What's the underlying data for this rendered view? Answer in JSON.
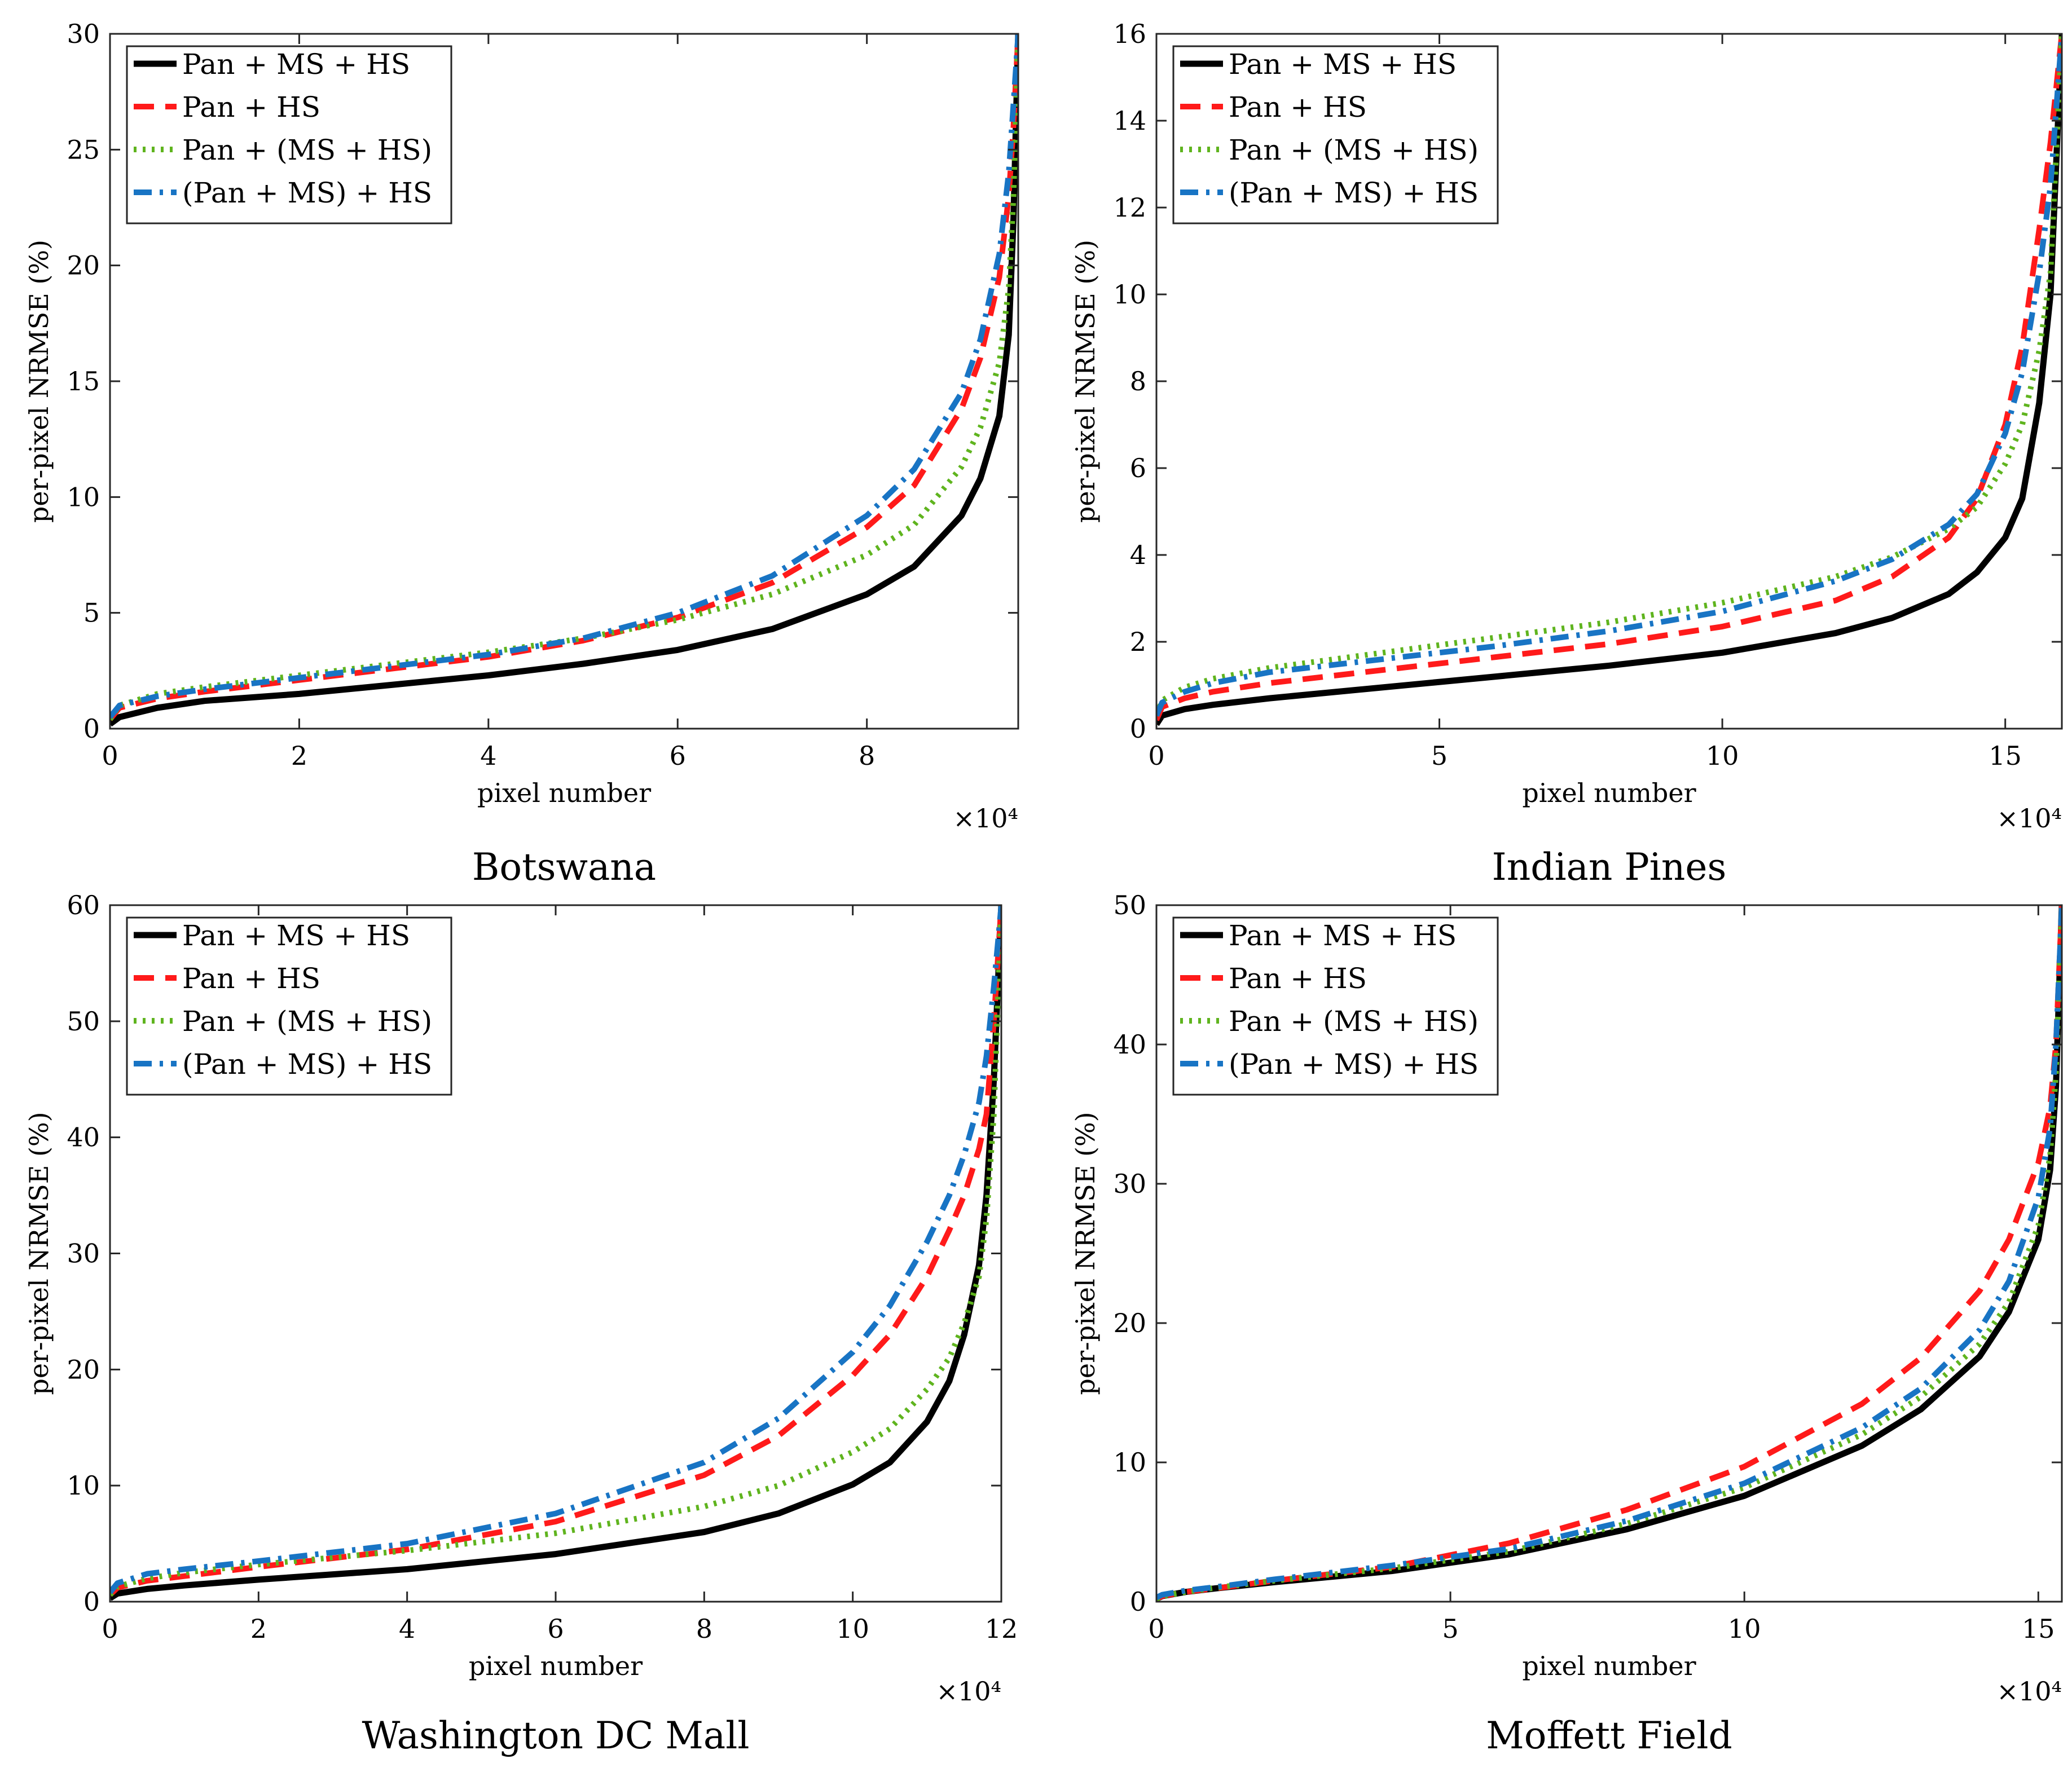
{
  "figure": {
    "panels": [
      "Botswana",
      "Indian Pines",
      "Washington DC Mall",
      "Moffett Field"
    ]
  },
  "legend": {
    "entries": [
      "Pan + MS + HS",
      "Pan + HS",
      "Pan + (MS + HS)",
      "(Pan + MS) + HS"
    ],
    "colors": [
      "#000000",
      "#ff1a1a",
      "#5fb41e",
      "#1874c4"
    ],
    "dash_styles": [
      "solid",
      "dashed",
      "dotted",
      "dash-dot"
    ],
    "placement": "top-left"
  },
  "chart_data": [
    {
      "type": "line",
      "title": "Botswana",
      "xlabel": "pixel number",
      "ylabel": "per-pixel NRMSE (%)",
      "x_exponent_label": "×10⁴",
      "xlim": [
        0,
        9.6
      ],
      "ylim": [
        0,
        30
      ],
      "xticks": [
        0,
        2,
        4,
        6,
        8
      ],
      "yticks": [
        0,
        5,
        10,
        15,
        20,
        25,
        30
      ],
      "x_scale_note": "x values in units of 10^4 pixels",
      "grid": false,
      "series": [
        {
          "name": "Pan + MS + HS",
          "x": [
            0,
            0.1,
            0.5,
            1,
            2,
            3,
            4,
            5,
            6,
            7,
            8,
            8.5,
            9,
            9.2,
            9.4,
            9.5,
            9.55,
            9.6
          ],
          "y": [
            0.2,
            0.5,
            0.9,
            1.2,
            1.5,
            1.9,
            2.3,
            2.8,
            3.4,
            4.3,
            5.8,
            7,
            9.2,
            10.8,
            13.5,
            17,
            22,
            30
          ]
        },
        {
          "name": "Pan + HS",
          "x": [
            0,
            0.1,
            0.5,
            1,
            2,
            3,
            4,
            5,
            6,
            7,
            8,
            8.5,
            9,
            9.2,
            9.4,
            9.5,
            9.55,
            9.6
          ],
          "y": [
            0.4,
            0.9,
            1.3,
            1.6,
            2.1,
            2.6,
            3.1,
            3.8,
            4.8,
            6.3,
            8.7,
            10.5,
            13.8,
            16,
            19.5,
            23,
            26,
            30
          ]
        },
        {
          "name": "Pan + (MS + HS)",
          "x": [
            0,
            0.1,
            0.5,
            1,
            2,
            3,
            4,
            5,
            6,
            7,
            8,
            8.5,
            9,
            9.2,
            9.4,
            9.5,
            9.55,
            9.6
          ],
          "y": [
            0.4,
            1,
            1.5,
            1.8,
            2.3,
            2.8,
            3.3,
            3.9,
            4.7,
            5.8,
            7.5,
            8.8,
            11.3,
            13,
            15.8,
            19,
            23,
            30
          ]
        },
        {
          "name": "(Pan + MS) + HS",
          "x": [
            0,
            0.1,
            0.5,
            1,
            2,
            3,
            4,
            5,
            6,
            7,
            8,
            8.5,
            9,
            9.2,
            9.4,
            9.5,
            9.55,
            9.6
          ],
          "y": [
            0.5,
            1,
            1.4,
            1.7,
            2.2,
            2.7,
            3.2,
            3.9,
            5,
            6.6,
            9.2,
            11.2,
            14.5,
            16.8,
            20.5,
            24,
            27,
            30
          ]
        }
      ]
    },
    {
      "type": "line",
      "title": "Indian Pines",
      "xlabel": "pixel number",
      "ylabel": "per-pixel NRMSE (%)",
      "x_exponent_label": "×10⁴",
      "xlim": [
        0,
        16
      ],
      "ylim": [
        0,
        16
      ],
      "xticks": [
        0,
        5,
        10,
        15
      ],
      "yticks": [
        0,
        2,
        4,
        6,
        8,
        10,
        12,
        14,
        16
      ],
      "x_scale_note": "x values in units of 10^4 pixels",
      "grid": false,
      "series": [
        {
          "name": "Pan + MS + HS",
          "x": [
            0,
            0.1,
            0.5,
            1,
            2,
            4,
            6,
            8,
            10,
            12,
            13,
            14,
            14.5,
            15,
            15.3,
            15.6,
            15.8,
            16
          ],
          "y": [
            0.1,
            0.3,
            0.45,
            0.55,
            0.7,
            0.95,
            1.2,
            1.45,
            1.75,
            2.2,
            2.55,
            3.1,
            3.6,
            4.4,
            5.3,
            7.5,
            10,
            16
          ]
        },
        {
          "name": "Pan + HS",
          "x": [
            0,
            0.1,
            0.5,
            1,
            2,
            4,
            6,
            8,
            10,
            12,
            13,
            14,
            14.5,
            15,
            15.3,
            15.6,
            15.8,
            16
          ],
          "y": [
            0.2,
            0.5,
            0.7,
            0.85,
            1.05,
            1.35,
            1.65,
            1.95,
            2.35,
            2.95,
            3.5,
            4.4,
            5.3,
            7,
            8.8,
            11.5,
            13.5,
            16
          ]
        },
        {
          "name": "Pan + (MS + HS)",
          "x": [
            0,
            0.1,
            0.5,
            1,
            2,
            4,
            6,
            8,
            10,
            12,
            13,
            14,
            14.5,
            15,
            15.3,
            15.6,
            15.8,
            16
          ],
          "y": [
            0.3,
            0.65,
            0.95,
            1.15,
            1.4,
            1.75,
            2.1,
            2.45,
            2.9,
            3.5,
            3.95,
            4.6,
            5.1,
            6.1,
            7,
            8.7,
            10.5,
            16
          ]
        },
        {
          "name": "(Pan + MS) + HS",
          "x": [
            0,
            0.1,
            0.5,
            1,
            2,
            4,
            6,
            8,
            10,
            12,
            13,
            14,
            14.5,
            15,
            15.3,
            15.6,
            15.8,
            16
          ],
          "y": [
            0.3,
            0.6,
            0.85,
            1.05,
            1.3,
            1.6,
            1.9,
            2.25,
            2.7,
            3.4,
            3.9,
            4.7,
            5.4,
            6.8,
            8.2,
            10.5,
            12.5,
            16
          ]
        }
      ]
    },
    {
      "type": "line",
      "title": "Washington DC Mall",
      "xlabel": "pixel number",
      "ylabel": "per-pixel NRMSE (%)",
      "x_exponent_label": "×10⁴",
      "xlim": [
        0,
        12
      ],
      "ylim": [
        0,
        60
      ],
      "xticks": [
        0,
        2,
        4,
        6,
        8,
        10,
        12
      ],
      "yticks": [
        0,
        10,
        20,
        30,
        40,
        50,
        60
      ],
      "x_scale_note": "x values in units of 10^4 pixels",
      "grid": false,
      "series": [
        {
          "name": "Pan + MS + HS",
          "x": [
            0,
            0.1,
            0.5,
            1,
            2,
            4,
            6,
            8,
            9,
            10,
            10.5,
            11,
            11.3,
            11.5,
            11.7,
            11.8,
            11.9,
            12
          ],
          "y": [
            0.3,
            0.7,
            1.1,
            1.4,
            1.9,
            2.8,
            4.1,
            6,
            7.6,
            10.1,
            12,
            15.5,
            19,
            23,
            29,
            35,
            45,
            60
          ]
        },
        {
          "name": "Pan + HS",
          "x": [
            0,
            0.1,
            0.5,
            1,
            2,
            4,
            6,
            8,
            9,
            10,
            10.5,
            11,
            11.3,
            11.5,
            11.7,
            11.8,
            11.9,
            12
          ],
          "y": [
            0.6,
            1.2,
            1.8,
            2.2,
            3,
            4.5,
            6.9,
            10.9,
            14.3,
            19.5,
            23,
            28,
            32,
            35,
            39,
            42,
            50,
            60
          ]
        },
        {
          "name": "Pan + (MS + HS)",
          "x": [
            0,
            0.1,
            0.5,
            1,
            2,
            4,
            6,
            8,
            9,
            10,
            10.5,
            11,
            11.3,
            11.5,
            11.7,
            11.8,
            11.9,
            12
          ],
          "y": [
            0.6,
            1.3,
            2,
            2.5,
            3.2,
            4.4,
            5.9,
            8.2,
            10,
            12.9,
            14.9,
            18.3,
            21,
            24,
            28,
            33,
            42,
            60
          ]
        },
        {
          "name": "(Pan + MS) + HS",
          "x": [
            0,
            0.1,
            0.5,
            1,
            2,
            4,
            6,
            8,
            9,
            10,
            10.5,
            11,
            11.3,
            11.5,
            11.7,
            11.8,
            11.9,
            12
          ],
          "y": [
            0.8,
            1.6,
            2.4,
            2.8,
            3.5,
            5,
            7.6,
            12,
            15.8,
            21.5,
            25.5,
            31,
            35,
            38.5,
            43,
            47,
            53,
            60
          ]
        }
      ]
    },
    {
      "type": "line",
      "title": "Moffett Field",
      "xlabel": "pixel number",
      "ylabel": "per-pixel NRMSE (%)",
      "x_exponent_label": "×10⁴",
      "xlim": [
        0,
        15.4
      ],
      "ylim": [
        0,
        50
      ],
      "xticks": [
        0,
        5,
        10,
        15
      ],
      "yticks": [
        0,
        10,
        20,
        30,
        40,
        50
      ],
      "x_scale_note": "x values in units of 10^4 pixels",
      "grid": false,
      "series": [
        {
          "name": "Pan + MS + HS",
          "x": [
            0,
            0.1,
            0.5,
            1,
            2,
            4,
            6,
            8,
            10,
            12,
            13,
            14,
            14.5,
            15,
            15.2,
            15.3,
            15.4
          ],
          "y": [
            0.2,
            0.4,
            0.7,
            0.95,
            1.4,
            2.2,
            3.4,
            5.2,
            7.6,
            11.2,
            13.8,
            17.6,
            20.8,
            26,
            31,
            37,
            50
          ]
        },
        {
          "name": "Pan + HS",
          "x": [
            0,
            0.1,
            0.5,
            1,
            2,
            4,
            6,
            8,
            10,
            12,
            13,
            14,
            14.5,
            15,
            15.2,
            15.3,
            15.4
          ],
          "y": [
            0.2,
            0.4,
            0.7,
            0.95,
            1.5,
            2.5,
            4.2,
            6.6,
            9.7,
            14.2,
            17.5,
            22.3,
            26,
            31.5,
            35.5,
            40,
            50
          ]
        },
        {
          "name": "Pan + (MS + HS)",
          "x": [
            0,
            0.1,
            0.5,
            1,
            2,
            4,
            6,
            8,
            10,
            12,
            13,
            14,
            14.5,
            15,
            15.2,
            15.3,
            15.4
          ],
          "y": [
            0.2,
            0.4,
            0.7,
            1,
            1.5,
            2.4,
            3.6,
            5.6,
            8.2,
            12,
            14.7,
            18.5,
            21.5,
            27,
            32,
            38,
            50
          ]
        },
        {
          "name": "(Pan + MS) + HS",
          "x": [
            0,
            0.1,
            0.5,
            1,
            2,
            4,
            6,
            8,
            10,
            12,
            13,
            14,
            14.5,
            15,
            15.2,
            15.3,
            15.4
          ],
          "y": [
            0.3,
            0.5,
            0.8,
            1.05,
            1.6,
            2.6,
            3.8,
            5.8,
            8.5,
            12.5,
            15.3,
            19.5,
            23,
            29,
            34,
            40,
            50
          ]
        }
      ]
    }
  ]
}
